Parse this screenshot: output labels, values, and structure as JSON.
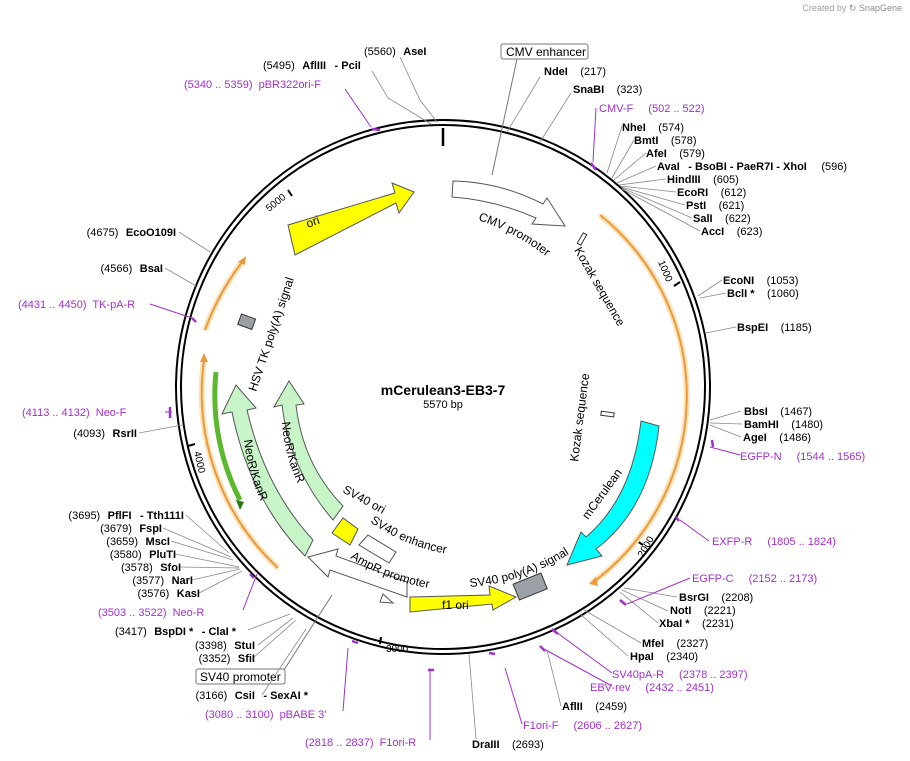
{
  "credit": {
    "prefix": "Created by",
    "brand": "SnapGene"
  },
  "plasmid": {
    "name": "mCerulean3-EB3-7",
    "size_label": "5570 bp",
    "length": 5570
  },
  "ticks": [
    "1000",
    "2000",
    "3000",
    "4000",
    "5000"
  ],
  "colors": {
    "primer": "#a12fce",
    "ori": "#ffff00",
    "mCerulean": "#00ffff",
    "neo": "#c7f5c7",
    "orange": "#f5a94a",
    "arrow_outline": "#555555"
  },
  "features": [
    {
      "label": "CMV enhancer",
      "boxed": true
    },
    {
      "label": "CMV promoter"
    },
    {
      "label": "Kozak sequence"
    },
    {
      "label": "Kozak sequence"
    },
    {
      "label": "mCerulean"
    },
    {
      "label": "SV40 poly(A) signal"
    },
    {
      "label": "f1 ori"
    },
    {
      "label": "AmpR promoter"
    },
    {
      "label": "SV40 promoter",
      "boxed": true
    },
    {
      "label": "SV40 ori"
    },
    {
      "label": "SV40 enhancer"
    },
    {
      "label": "NeoR/KanR"
    },
    {
      "label": "NeoR/KanR"
    },
    {
      "label": "HSV TK poly(A) signal"
    },
    {
      "label": "ori"
    }
  ],
  "sites": [
    {
      "name": "AseI",
      "pos": "(5560)"
    },
    {
      "name": "AflIII",
      "pos": "(5495)",
      "extra": "-  PciI"
    },
    {
      "name": "NdeI",
      "pos": "(217)"
    },
    {
      "name": "SnaBI",
      "pos": "(323)"
    },
    {
      "name": "NheI",
      "pos": "(574)"
    },
    {
      "name": "BmtI",
      "pos": "(578)"
    },
    {
      "name": "AfeI",
      "pos": "(579)"
    },
    {
      "name": "AvaI",
      "pos": "(596)",
      "extra": "-  BsoBI   -  PaeR7I   -  XhoI"
    },
    {
      "name": "HindIII",
      "pos": "(605)"
    },
    {
      "name": "EcoRI",
      "pos": "(612)"
    },
    {
      "name": "PstI",
      "pos": "(621)"
    },
    {
      "name": "SalI",
      "pos": "(622)"
    },
    {
      "name": "AccI",
      "pos": "(623)"
    },
    {
      "name": "EcoNI",
      "pos": "(1053)"
    },
    {
      "name": "BclI *",
      "pos": "(1060)"
    },
    {
      "name": "BspEI",
      "pos": "(1185)"
    },
    {
      "name": "BbsI",
      "pos": "(1467)"
    },
    {
      "name": "BamHI",
      "pos": "(1480)"
    },
    {
      "name": "AgeI",
      "pos": "(1486)"
    },
    {
      "name": "BsrGI",
      "pos": "(2208)"
    },
    {
      "name": "NotI",
      "pos": "(2221)"
    },
    {
      "name": "XbaI *",
      "pos": "(2231)"
    },
    {
      "name": "MfeI",
      "pos": "(2327)"
    },
    {
      "name": "HpaI",
      "pos": "(2340)"
    },
    {
      "name": "AflII",
      "pos": "(2459)"
    },
    {
      "name": "DraIII",
      "pos": "(2693)"
    },
    {
      "name": "CsiI",
      "pos": "(3166)",
      "extra": "-  SexAI *"
    },
    {
      "name": "SfiI",
      "pos": "(3352)"
    },
    {
      "name": "StuI",
      "pos": "(3398)"
    },
    {
      "name": "BspDI *",
      "pos": "(3417)",
      "extra": "-  ClaI *"
    },
    {
      "name": "KasI",
      "pos": "(3576)"
    },
    {
      "name": "NarI",
      "pos": "(3577)"
    },
    {
      "name": "SfoI",
      "pos": "(3578)"
    },
    {
      "name": "PluTI",
      "pos": "(3580)"
    },
    {
      "name": "MscI",
      "pos": "(3659)"
    },
    {
      "name": "FspI",
      "pos": "(3679)"
    },
    {
      "name": "PflFI",
      "pos": "(3695)",
      "extra": "-  Tth111I"
    },
    {
      "name": "RsrII",
      "pos": "(4093)"
    },
    {
      "name": "BsaI",
      "pos": "(4566)"
    },
    {
      "name": "EcoO109I",
      "pos": "(4675)"
    }
  ],
  "primers": [
    {
      "name": "pBR322ori-F",
      "range": "(5340 .. 5359)"
    },
    {
      "name": "CMV-F",
      "range": "(502 .. 522)"
    },
    {
      "name": "EGFP-N",
      "range": "(1544 .. 1565)"
    },
    {
      "name": "EXFP-R",
      "range": "(1805 .. 1824)"
    },
    {
      "name": "EGFP-C",
      "range": "(2152 .. 2173)"
    },
    {
      "name": "SV40pA-R",
      "range": "(2378 .. 2397)"
    },
    {
      "name": "EBV-rev",
      "range": "(2432 .. 2451)"
    },
    {
      "name": "F1ori-F",
      "range": "(2606 .. 2627)"
    },
    {
      "name": "F1ori-R",
      "range": "(2818 .. 2837)"
    },
    {
      "name": "pBABE 3'",
      "range": "(3080 .. 3100)"
    },
    {
      "name": "Neo-R",
      "range": "(3503 .. 3522)"
    },
    {
      "name": "Neo-F",
      "range": "(4113 .. 4132)"
    },
    {
      "name": "TK-pA-R",
      "range": "(4431 .. 4450)"
    }
  ]
}
